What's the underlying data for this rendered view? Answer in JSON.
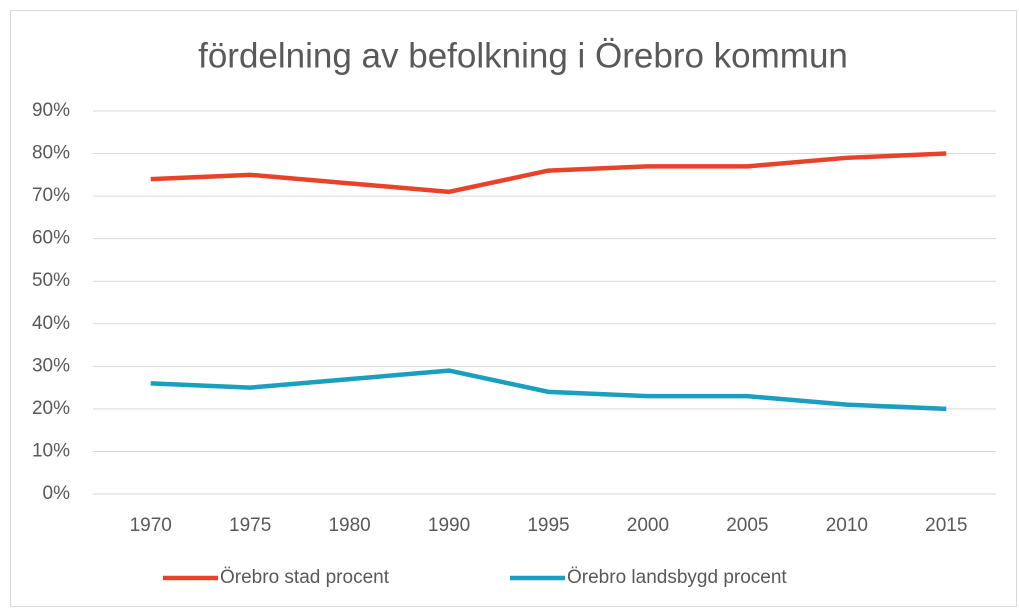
{
  "chart_data": {
    "type": "line",
    "title": "fördelning av befolkning i Örebro kommun",
    "categories": [
      "1970",
      "1975",
      "1980",
      "1990",
      "1995",
      "2000",
      "2005",
      "2010",
      "2015"
    ],
    "series": [
      {
        "name": "Örebro stad procent",
        "color": "#e8432a",
        "values": [
          74,
          75,
          73,
          71,
          76,
          77,
          77,
          79,
          80
        ]
      },
      {
        "name": "Örebro landsbygd procent",
        "color": "#1b9fc0",
        "values": [
          26,
          25,
          27,
          29,
          24,
          23,
          23,
          21,
          20
        ]
      }
    ],
    "ylim": [
      0,
      90
    ],
    "yticks": [
      {
        "value": 0,
        "label": "0%"
      },
      {
        "value": 10,
        "label": "10%"
      },
      {
        "value": 20,
        "label": "20%"
      },
      {
        "value": 30,
        "label": "30%"
      },
      {
        "value": 40,
        "label": "40%"
      },
      {
        "value": 50,
        "label": "50%"
      },
      {
        "value": 60,
        "label": "60%"
      },
      {
        "value": 70,
        "label": "70%"
      },
      {
        "value": 80,
        "label": "80%"
      },
      {
        "value": 90,
        "label": "90%"
      }
    ],
    "grid": true,
    "legend": "bottom"
  }
}
